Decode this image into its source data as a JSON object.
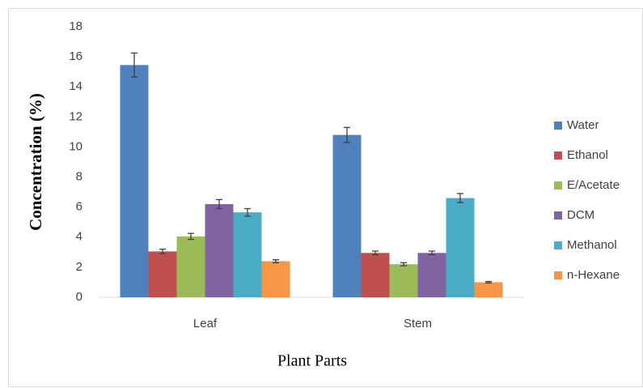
{
  "chart_data": {
    "type": "bar",
    "x_label": "Plant Parts",
    "y_label": "Concentration (%)",
    "categories": [
      "Leaf",
      "Stem"
    ],
    "series": [
      {
        "name": "Water",
        "color": "#4f81bd",
        "values": [
          15.45,
          10.8
        ],
        "errors": [
          0.8,
          0.5
        ]
      },
      {
        "name": "Ethanol",
        "color": "#c0504d",
        "values": [
          3.05,
          2.95
        ],
        "errors": [
          0.15,
          0.12
        ]
      },
      {
        "name": "E/Acetate",
        "color": "#9bbb59",
        "values": [
          4.05,
          2.2
        ],
        "errors": [
          0.2,
          0.1
        ]
      },
      {
        "name": "DCM",
        "color": "#8064a2",
        "values": [
          6.2,
          2.95
        ],
        "errors": [
          0.3,
          0.12
        ]
      },
      {
        "name": "Methanol",
        "color": "#4bacc6",
        "values": [
          5.65,
          6.6
        ],
        "errors": [
          0.25,
          0.3
        ]
      },
      {
        "name": "n-Hexane",
        "color": "#f79646",
        "values": [
          2.4,
          1.0
        ],
        "errors": [
          0.1,
          0.05
        ]
      }
    ],
    "ylim": [
      0,
      18
    ],
    "yticks": [
      0,
      2,
      4,
      6,
      8,
      10,
      12,
      14,
      16,
      18
    ],
    "grid": false,
    "legend": "right"
  }
}
